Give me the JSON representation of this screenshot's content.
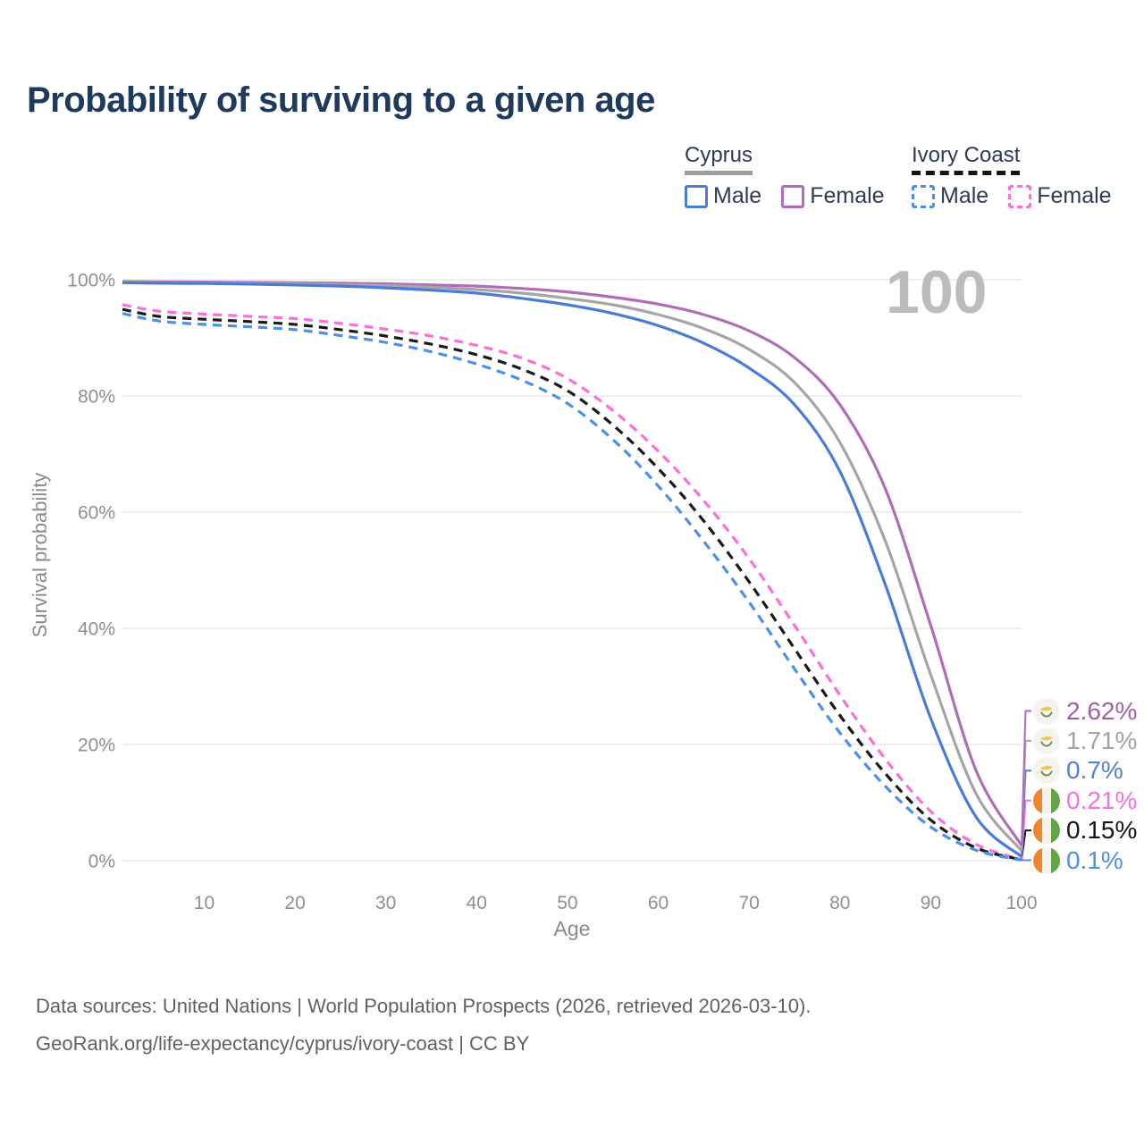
{
  "page": {
    "title": "Probability of surviving to a given age",
    "watermark": "100",
    "footer": {
      "line1": "Data sources: United Nations | World Population Prospects (2026, retrieved 2026-03-10).",
      "line2": "GeoRank.org/life-expectancy/cyprus/ivory-coast | CC BY"
    }
  },
  "colors": {
    "title": "#1e3a5c",
    "legend_text": "#2e3b52",
    "axis_text": "#8f8f8f",
    "grid": "#e9e9e9",
    "watermark": "#bcbcbc",
    "footer_text": "#616161"
  },
  "legend": {
    "groups": [
      {
        "id": "cyprus",
        "title": "Cyprus",
        "underline_style": "solid",
        "underline_color": "#9e9e9e",
        "items": [
          {
            "label": "Male",
            "color": "#4a7cd6",
            "dash": false
          },
          {
            "label": "Female",
            "color": "#b06cb8",
            "dash": false
          }
        ]
      },
      {
        "id": "ivory-coast",
        "title": "Ivory Coast",
        "underline_style": "dashed",
        "underline_color": "#141414",
        "items": [
          {
            "label": "Male",
            "color": "#4a90e8",
            "dash": true
          },
          {
            "label": "Female",
            "color": "#fb6fd8",
            "dash": true
          }
        ]
      }
    ]
  },
  "chart_data": {
    "type": "line",
    "title": "Probability of surviving to a given age",
    "xlabel": "Age",
    "ylabel": "Survival probability",
    "xlim": [
      1,
      100
    ],
    "ylim": [
      0,
      100
    ],
    "x_ticks": [
      10,
      20,
      30,
      40,
      50,
      60,
      70,
      80,
      90,
      100
    ],
    "y_ticks": [
      0,
      20,
      40,
      60,
      80,
      100
    ],
    "y_tick_suffix": "%",
    "grid": "horizontal",
    "legend_position": "top-right",
    "watermark": "100",
    "x": [
      1,
      5,
      10,
      15,
      20,
      25,
      30,
      35,
      40,
      45,
      50,
      55,
      60,
      65,
      70,
      75,
      80,
      85,
      90,
      95,
      100
    ],
    "series": [
      {
        "id": "cyprus-female",
        "name": "Cyprus Female",
        "country": "Cyprus",
        "sex": "female",
        "color": "#b06cb8",
        "label_color": "#a25fa8",
        "dash": false,
        "flag": "cyprus",
        "end_label": "2.62%",
        "values": [
          99.7,
          99.65,
          99.6,
          99.55,
          99.5,
          99.4,
          99.3,
          99.1,
          98.9,
          98.5,
          97.9,
          97.0,
          95.8,
          94.0,
          91.2,
          86.6,
          78.5,
          64.0,
          40.5,
          15.5,
          2.62
        ]
      },
      {
        "id": "cyprus-all",
        "name": "Cyprus (both sexes)",
        "country": "Cyprus",
        "sex": "all",
        "color": "#a5a5a5",
        "label_color": "#a3a3a3",
        "dash": false,
        "flag": "cyprus",
        "end_label": "1.71%",
        "values": [
          99.6,
          99.5,
          99.45,
          99.4,
          99.3,
          99.15,
          99.0,
          98.7,
          98.3,
          97.7,
          96.8,
          95.7,
          94.0,
          91.6,
          88.0,
          82.3,
          72.0,
          55.0,
          32.0,
          11.5,
          1.71
        ]
      },
      {
        "id": "cyprus-male",
        "name": "Cyprus Male",
        "country": "Cyprus",
        "sex": "male",
        "color": "#4a7cd6",
        "label_color": "#527fd4",
        "dash": false,
        "flag": "cyprus",
        "end_label": "0.7%",
        "values": [
          99.5,
          99.4,
          99.35,
          99.25,
          99.1,
          98.9,
          98.6,
          98.2,
          97.7,
          96.8,
          95.7,
          94.2,
          92.1,
          89.1,
          84.8,
          78.5,
          67.0,
          47.5,
          24.5,
          7.5,
          0.7
        ]
      },
      {
        "id": "ivory-coast-female",
        "name": "Ivory Coast Female",
        "country": "Ivory Coast",
        "sex": "female",
        "color": "#fb6fd8",
        "label_color": "#fb6fd8",
        "dash": true,
        "flag": "ivory-coast",
        "end_label": "0.21%",
        "values": [
          95.7,
          94.6,
          94.1,
          93.7,
          93.3,
          92.5,
          91.5,
          90.3,
          88.7,
          86.5,
          83.0,
          77.5,
          70.5,
          62.0,
          52.0,
          40.5,
          28.5,
          17.5,
          8.5,
          2.8,
          0.21
        ]
      },
      {
        "id": "ivory-coast-all",
        "name": "Ivory Coast (both sexes)",
        "country": "Ivory Coast",
        "sex": "all",
        "color": "#1a1a1a",
        "label_color": "#141414",
        "dash": true,
        "flag": "ivory-coast",
        "end_label": "0.15%",
        "values": [
          94.9,
          93.7,
          93.2,
          92.8,
          92.3,
          91.4,
          90.3,
          88.9,
          87.1,
          84.6,
          80.9,
          75.0,
          67.5,
          58.5,
          48.0,
          36.5,
          25.0,
          15.0,
          7.0,
          2.2,
          0.15
        ]
      },
      {
        "id": "ivory-coast-male",
        "name": "Ivory Coast Male",
        "country": "Ivory Coast",
        "sex": "male",
        "color": "#4a90e8",
        "label_color": "#4a90e8",
        "dash": true,
        "flag": "ivory-coast",
        "end_label": "0.1%",
        "values": [
          94.2,
          92.9,
          92.3,
          91.9,
          91.4,
          90.4,
          89.2,
          87.6,
          85.5,
          82.7,
          78.7,
          72.5,
          64.5,
          55.0,
          44.5,
          33.0,
          22.0,
          12.8,
          5.8,
          1.8,
          0.1
        ]
      }
    ]
  }
}
